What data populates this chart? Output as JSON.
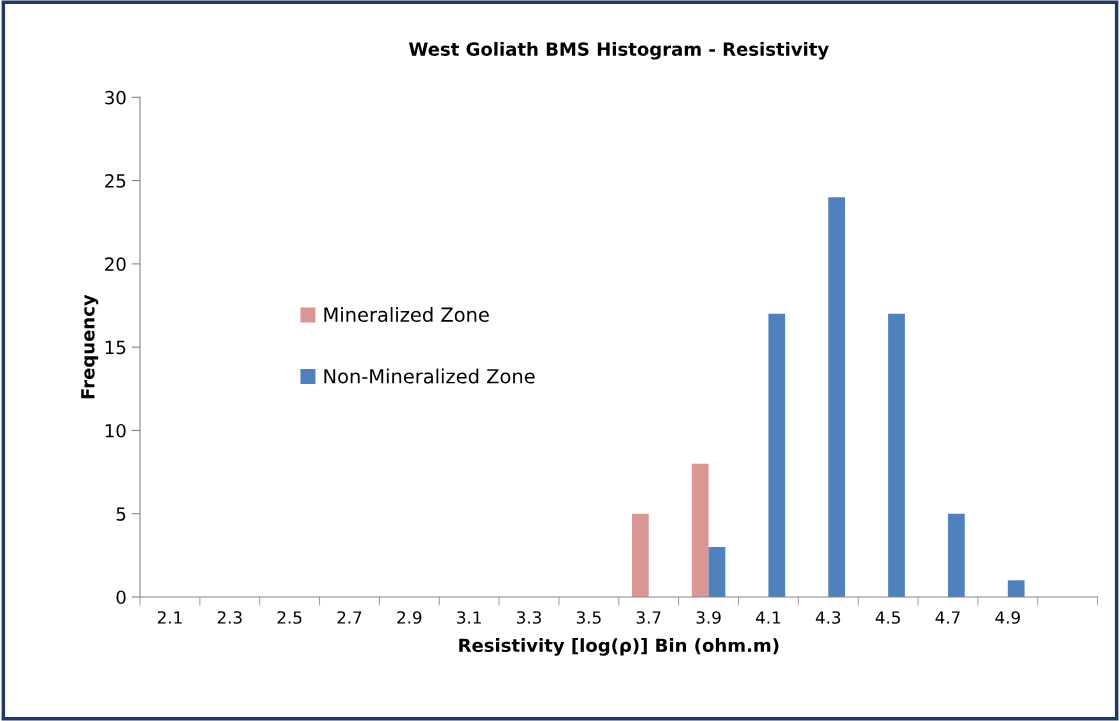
{
  "chart_data": {
    "type": "bar",
    "title": "West Goliath BMS Histogram - Resistivity",
    "xlabel": "Resistivity [log(ρ)] Bin (ohm.m)",
    "ylabel": "Frequency",
    "categories": [
      "2.1",
      "2.3",
      "2.5",
      "2.7",
      "2.9",
      "3.1",
      "3.3",
      "3.5",
      "3.7",
      "3.9",
      "4.1",
      "4.3",
      "4.5",
      "4.7",
      "4.9",
      null
    ],
    "series": [
      {
        "name": "Mineralized Zone",
        "color": "#d99694",
        "values": [
          0,
          0,
          0,
          0,
          0,
          0,
          0,
          0,
          5,
          8,
          0,
          0,
          0,
          0,
          0,
          0
        ]
      },
      {
        "name": "Non-Mineralized Zone",
        "color": "#4f81bd",
        "values": [
          0,
          0,
          0,
          0,
          0,
          0,
          0,
          0,
          0,
          3,
          17,
          24,
          17,
          5,
          1,
          0
        ]
      }
    ],
    "ylim": [
      0,
      30
    ],
    "yticks": [
      0,
      5,
      10,
      15,
      20,
      25,
      30
    ],
    "grid": false,
    "legend": "left"
  }
}
